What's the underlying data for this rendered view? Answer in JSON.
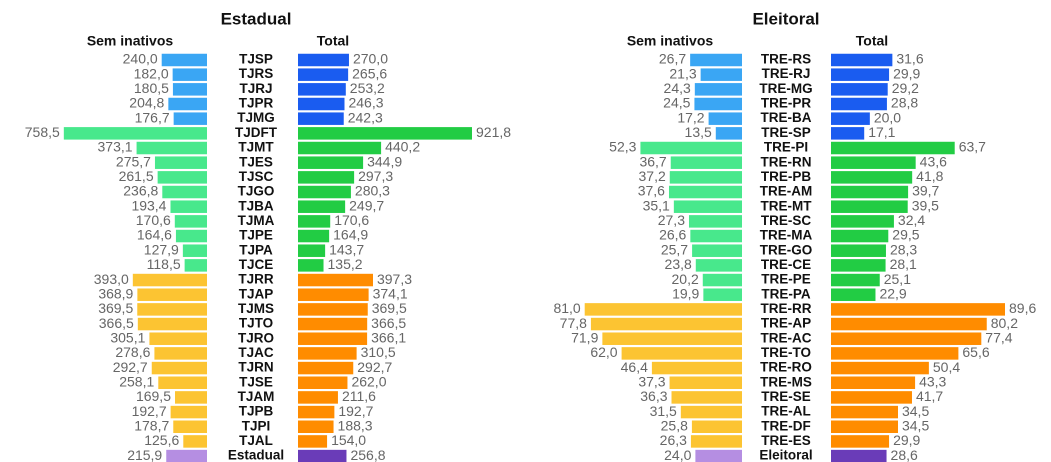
{
  "chart_data": [
    {
      "type": "butterfly",
      "title": "Estadual",
      "categories": [
        "TJSP",
        "TJRS",
        "TJRJ",
        "TJPR",
        "TJMG",
        "TJDFT",
        "TJMT",
        "TJES",
        "TJSC",
        "TJGO",
        "TJBA",
        "TJMA",
        "TJPE",
        "TJPA",
        "TJCE",
        "TJRR",
        "TJAP",
        "TJMS",
        "TJTO",
        "TJRO",
        "TJAC",
        "TJRN",
        "TJSE",
        "TJAM",
        "TJPB",
        "TJPI",
        "TJAL",
        "Estadual"
      ],
      "series": [
        {
          "name": "Sem inativos",
          "values": [
            240.0,
            182.0,
            180.5,
            204.8,
            176.7,
            758.5,
            373.1,
            275.7,
            261.5,
            236.8,
            193.4,
            170.6,
            164.6,
            127.9,
            118.5,
            393.0,
            368.9,
            369.5,
            366.5,
            305.1,
            278.6,
            292.7,
            258.1,
            169.5,
            192.7,
            178.7,
            125.6,
            215.9
          ],
          "value_labels": [
            "240,0",
            "182,0",
            "180,5",
            "204,8",
            "176,7",
            "758,5",
            "373,1",
            "275,7",
            "261,5",
            "236,8",
            "193,4",
            "170,6",
            "164,6",
            "127,9",
            "118,5",
            "393,0",
            "368,9",
            "369,5",
            "366,5",
            "305,1",
            "278,6",
            "292,7",
            "258,1",
            "169,5",
            "192,7",
            "178,7",
            "125,6",
            "215,9"
          ],
          "colors": [
            "#3aa6f4",
            "#3aa6f4",
            "#3aa6f4",
            "#3aa6f4",
            "#3aa6f4",
            "#48e88c",
            "#48e88c",
            "#48e88c",
            "#48e88c",
            "#48e88c",
            "#48e88c",
            "#48e88c",
            "#48e88c",
            "#48e88c",
            "#48e88c",
            "#fcc432",
            "#fcc432",
            "#fcc432",
            "#fcc432",
            "#fcc432",
            "#fcc432",
            "#fcc432",
            "#fcc432",
            "#fcc432",
            "#fcc432",
            "#fcc432",
            "#fcc432",
            "#b58ee2"
          ]
        },
        {
          "name": "Total",
          "values": [
            270.0,
            265.6,
            253.2,
            246.3,
            242.3,
            921.8,
            440.2,
            344.9,
            297.3,
            280.3,
            249.7,
            170.6,
            164.9,
            143.7,
            135.2,
            397.3,
            374.1,
            369.5,
            366.5,
            366.1,
            310.5,
            292.7,
            262.0,
            211.6,
            192.7,
            188.3,
            154.0,
            256.8
          ],
          "value_labels": [
            "270,0",
            "265,6",
            "253,2",
            "246,3",
            "242,3",
            "921,8",
            "440,2",
            "344,9",
            "297,3",
            "280,3",
            "249,7",
            "170,6",
            "164,9",
            "143,7",
            "135,2",
            "397,3",
            "374,1",
            "369,5",
            "366,5",
            "366,1",
            "310,5",
            "292,7",
            "262,0",
            "211,6",
            "192,7",
            "188,3",
            "154,0",
            "256,8"
          ],
          "colors": [
            "#1a5cf0",
            "#1a5cf0",
            "#1a5cf0",
            "#1a5cf0",
            "#1a5cf0",
            "#22cc44",
            "#22cc44",
            "#22cc44",
            "#22cc44",
            "#22cc44",
            "#22cc44",
            "#22cc44",
            "#22cc44",
            "#22cc44",
            "#22cc44",
            "#ff8c00",
            "#ff8c00",
            "#ff8c00",
            "#ff8c00",
            "#ff8c00",
            "#ff8c00",
            "#ff8c00",
            "#ff8c00",
            "#ff8c00",
            "#ff8c00",
            "#ff8c00",
            "#ff8c00",
            "#6a3cb8"
          ]
        }
      ]
    },
    {
      "type": "butterfly",
      "title": "Eleitoral",
      "categories": [
        "TRE-RS",
        "TRE-RJ",
        "TRE-MG",
        "TRE-PR",
        "TRE-BA",
        "TRE-SP",
        "TRE-PI",
        "TRE-RN",
        "TRE-PB",
        "TRE-AM",
        "TRE-MT",
        "TRE-SC",
        "TRE-MA",
        "TRE-GO",
        "TRE-CE",
        "TRE-PE",
        "TRE-PA",
        "TRE-RR",
        "TRE-AP",
        "TRE-AC",
        "TRE-TO",
        "TRE-RO",
        "TRE-MS",
        "TRE-SE",
        "TRE-AL",
        "TRE-DF",
        "TRE-ES",
        "Eleitoral"
      ],
      "series": [
        {
          "name": "Sem inativos",
          "values": [
            26.7,
            21.3,
            24.3,
            24.5,
            17.2,
            13.5,
            52.3,
            36.7,
            37.2,
            37.6,
            35.1,
            27.3,
            26.6,
            25.7,
            23.8,
            20.2,
            19.9,
            81.0,
            77.8,
            71.9,
            62.0,
            46.4,
            37.3,
            36.3,
            31.5,
            25.8,
            26.3,
            24.0
          ],
          "value_labels": [
            "26,7",
            "21,3",
            "24,3",
            "24,5",
            "17,2",
            "13,5",
            "52,3",
            "36,7",
            "37,2",
            "37,6",
            "35,1",
            "27,3",
            "26,6",
            "25,7",
            "23,8",
            "20,2",
            "19,9",
            "81,0",
            "77,8",
            "71,9",
            "62,0",
            "46,4",
            "37,3",
            "36,3",
            "31,5",
            "25,8",
            "26,3",
            "24,0"
          ],
          "colors": [
            "#3aa6f4",
            "#3aa6f4",
            "#3aa6f4",
            "#3aa6f4",
            "#3aa6f4",
            "#3aa6f4",
            "#48e88c",
            "#48e88c",
            "#48e88c",
            "#48e88c",
            "#48e88c",
            "#48e88c",
            "#48e88c",
            "#48e88c",
            "#48e88c",
            "#48e88c",
            "#48e88c",
            "#fcc432",
            "#fcc432",
            "#fcc432",
            "#fcc432",
            "#fcc432",
            "#fcc432",
            "#fcc432",
            "#fcc432",
            "#fcc432",
            "#fcc432",
            "#b58ee2"
          ]
        },
        {
          "name": "Total",
          "values": [
            31.6,
            29.9,
            29.2,
            28.8,
            20.0,
            17.1,
            63.7,
            43.6,
            41.8,
            39.7,
            39.5,
            32.4,
            29.5,
            28.3,
            28.1,
            25.1,
            22.9,
            89.6,
            80.2,
            77.4,
            65.6,
            50.4,
            43.3,
            41.7,
            34.5,
            34.5,
            29.9,
            28.6
          ],
          "value_labels": [
            "31,6",
            "29,9",
            "29,2",
            "28,8",
            "20,0",
            "17,1",
            "63,7",
            "43,6",
            "41,8",
            "39,7",
            "39,5",
            "32,4",
            "29,5",
            "28,3",
            "28,1",
            "25,1",
            "22,9",
            "89,6",
            "80,2",
            "77,4",
            "65,6",
            "50,4",
            "43,3",
            "41,7",
            "34,5",
            "34,5",
            "29,9",
            "28,6"
          ],
          "colors": [
            "#1a5cf0",
            "#1a5cf0",
            "#1a5cf0",
            "#1a5cf0",
            "#1a5cf0",
            "#1a5cf0",
            "#22cc44",
            "#22cc44",
            "#22cc44",
            "#22cc44",
            "#22cc44",
            "#22cc44",
            "#22cc44",
            "#22cc44",
            "#22cc44",
            "#22cc44",
            "#22cc44",
            "#ff8c00",
            "#ff8c00",
            "#ff8c00",
            "#ff8c00",
            "#ff8c00",
            "#ff8c00",
            "#ff8c00",
            "#ff8c00",
            "#ff8c00",
            "#ff8c00",
            "#6a3cb8"
          ]
        }
      ]
    }
  ]
}
